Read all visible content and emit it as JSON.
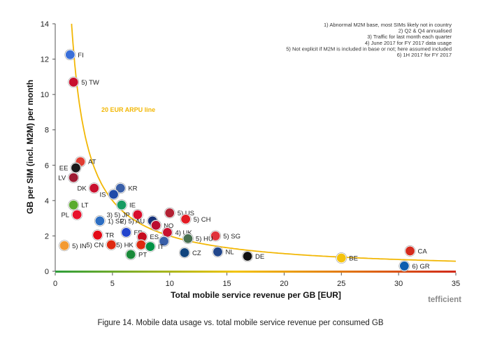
{
  "chart_data": {
    "type": "scatter",
    "title": "",
    "xlabel": "Total mobile service revenue per GB [EUR]",
    "ylabel": "GB per SIM (incl. M2M) per month",
    "xlim": [
      0,
      35
    ],
    "ylim": [
      0,
      14
    ],
    "xticks": [
      0,
      5,
      10,
      15,
      20,
      25,
      30,
      35
    ],
    "yticks": [
      0,
      2,
      4,
      6,
      8,
      10,
      12,
      14
    ],
    "curve": {
      "name": "20 EUR ARPU line",
      "arpu": 20,
      "color": "#f2b705"
    },
    "notes": [
      "1) Abnormal M2M base, most SIMs likely not in country",
      "2) Q2 & Q4 annualised",
      "3) Traffic for last month each quarter",
      "4) June 2017 for FY 2017 data usage",
      "5) Not explicit if M2M is included in base or not; here  assumed included",
      "6) 1H 2017 for FY 2017"
    ],
    "points": [
      {
        "label": "FI",
        "x": 1.3,
        "y": 12.25,
        "color": "#3a6fd8",
        "side": "right"
      },
      {
        "label": "5) TW",
        "x": 1.6,
        "y": 10.7,
        "color": "#c8102e",
        "side": "right"
      },
      {
        "label": "AT",
        "x": 2.2,
        "y": 6.2,
        "color": "#e03c31",
        "side": "right"
      },
      {
        "label": "EE",
        "x": 1.8,
        "y": 5.85,
        "color": "#1a1a1a",
        "side": "left"
      },
      {
        "label": "LV",
        "x": 1.6,
        "y": 5.3,
        "color": "#9e1b32",
        "side": "left"
      },
      {
        "label": "DK",
        "x": 3.4,
        "y": 4.7,
        "color": "#c8102e",
        "side": "left"
      },
      {
        "label": "KR",
        "x": 5.7,
        "y": 4.7,
        "color": "#3a5fa8",
        "side": "right"
      },
      {
        "label": "IS",
        "x": 5.1,
        "y": 4.35,
        "color": "#1f4aa8",
        "side": "left"
      },
      {
        "label": "LT",
        "x": 1.6,
        "y": 3.75,
        "color": "#5aab2e",
        "side": "right"
      },
      {
        "label": "IE",
        "x": 5.8,
        "y": 3.75,
        "color": "#169b62",
        "side": "right"
      },
      {
        "label": "5) US",
        "x": 10.0,
        "y": 3.3,
        "color": "#b22234",
        "side": "right"
      },
      {
        "label": "PL",
        "x": 1.9,
        "y": 3.2,
        "color": "#e8112d",
        "side": "left"
      },
      {
        "label": "3) 5) JP",
        "x": 7.2,
        "y": 3.2,
        "color": "#d80c2b",
        "side": "left"
      },
      {
        "label": "5) CH",
        "x": 11.4,
        "y": 2.95,
        "color": "#e31b23",
        "side": "right"
      },
      {
        "label": "1) SE",
        "x": 3.9,
        "y": 2.85,
        "color": "#2d6ec2",
        "side": "right"
      },
      {
        "label": "2) 5) AU",
        "x": 8.5,
        "y": 2.85,
        "color": "#16327a",
        "side": "left"
      },
      {
        "label": "NO",
        "x": 8.8,
        "y": 2.6,
        "color": "#ba0c2f",
        "side": "right"
      },
      {
        "label": "FR",
        "x": 6.2,
        "y": 2.2,
        "color": "#2244cc",
        "side": "right"
      },
      {
        "label": "4) UK",
        "x": 9.8,
        "y": 2.2,
        "color": "#c8102e",
        "side": "right"
      },
      {
        "label": "5) SG",
        "x": 14.0,
        "y": 2.0,
        "color": "#e0313a",
        "side": "right"
      },
      {
        "label": "TR",
        "x": 3.7,
        "y": 2.05,
        "color": "#e30a17",
        "side": "right"
      },
      {
        "label": "ES",
        "x": 7.6,
        "y": 1.95,
        "color": "#c60b1e",
        "side": "right"
      },
      {
        "label": "5) HU",
        "x": 11.6,
        "y": 1.85,
        "color": "#477050",
        "side": "right"
      },
      {
        "label": "UK",
        "x": 9.5,
        "y": 1.7,
        "color": "#3a5fa8",
        "side": "none"
      },
      {
        "label": "5) HK",
        "x": 7.5,
        "y": 1.5,
        "color": "#de2910",
        "side": "left"
      },
      {
        "label": "5) CN",
        "x": 4.9,
        "y": 1.5,
        "color": "#de2910",
        "side": "left"
      },
      {
        "label": "5) IN",
        "x": 0.8,
        "y": 1.45,
        "color": "#f39a31",
        "side": "right"
      },
      {
        "label": "IT",
        "x": 8.3,
        "y": 1.4,
        "color": "#009246",
        "side": "right"
      },
      {
        "label": "PT",
        "x": 6.6,
        "y": 0.95,
        "color": "#1a8a3a",
        "side": "right"
      },
      {
        "label": "CZ",
        "x": 11.3,
        "y": 1.05,
        "color": "#11457e",
        "side": "right"
      },
      {
        "label": "NL",
        "x": 14.2,
        "y": 1.1,
        "color": "#21468b",
        "side": "right"
      },
      {
        "label": "DE",
        "x": 16.8,
        "y": 0.85,
        "color": "#111111",
        "side": "right"
      },
      {
        "label": "BE",
        "x": 25.0,
        "y": 0.75,
        "color": "#f4c20d",
        "side": "right"
      },
      {
        "label": "CA",
        "x": 31.0,
        "y": 1.15,
        "color": "#d52b1e",
        "side": "right"
      },
      {
        "label": "6) GR",
        "x": 30.5,
        "y": 0.3,
        "color": "#0d5eaf",
        "side": "right"
      }
    ]
  },
  "logo": "tefficient",
  "caption": "Figure 14. Mobile data usage vs. total mobile service revenue per consumed GB"
}
